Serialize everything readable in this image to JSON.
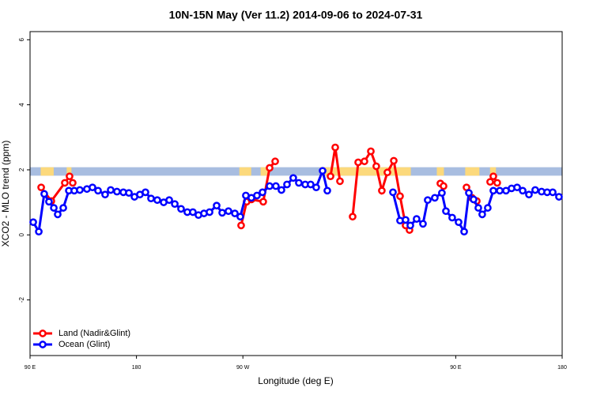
{
  "chart_data": {
    "type": "line",
    "title": "10N-15N May (Ver 11.2)   2014-09-06 to 2024-07-31",
    "xlabel": "Longitude (deg E)",
    "ylabel": "XCO2 - MLO trend (ppm)",
    "xlim": [
      90,
      540
    ],
    "ylim": [
      -3.71,
      6.25
    ],
    "xticks": [
      {
        "value": 90,
        "label": "90 E"
      },
      {
        "value": 180,
        "label": "180"
      },
      {
        "value": 270,
        "label": "90 W"
      },
      {
        "value": 450,
        "label": "90 E"
      },
      {
        "value": 540,
        "label": "180"
      }
    ],
    "yticks": [
      -2,
      0,
      2,
      4,
      6
    ],
    "band": {
      "ylim": [
        1.82,
        2.08
      ],
      "color": "#a8bde0"
    },
    "highlight": {
      "color": "#fcd97c",
      "ranges": [
        [
          99,
          110
        ],
        [
          121,
          125
        ],
        [
          267,
          277
        ],
        [
          285,
          292
        ],
        [
          335,
          412
        ],
        [
          434,
          440
        ],
        [
          458,
          470
        ],
        [
          479,
          484
        ]
      ]
    },
    "legend": "bottom-left",
    "series": [
      {
        "name": "Land (Nadir&Glint)",
        "color": "#ff0000",
        "x": [
          99.4,
          108,
          119.4,
          123.4,
          126.1,
          200,
          268.5,
          273.2,
          277.2,
          287.2,
          292.6,
          297.3,
          320,
          344.1,
          348.1,
          352.1,
          357,
          362.8,
          367.5,
          372.8,
          378.2,
          382.8,
          387.5,
          392.2,
          397.6,
          402.9,
          407.6,
          410.9,
          420,
          437.0,
          439.7,
          450,
          459.1,
          463.7,
          467.8,
          473,
          479.1,
          481.8,
          485.1
        ],
        "values": [
          1.46,
          1.04,
          1.6,
          1.8,
          1.6,
          null,
          0.29,
          1.02,
          1.09,
          1.02,
          2.06,
          2.26,
          null,
          1.8,
          2.69,
          1.65,
          null,
          0.56,
          2.23,
          2.26,
          2.57,
          2.11,
          1.36,
          1.92,
          2.28,
          1.19,
          0.29,
          0.15,
          null,
          1.58,
          1.5,
          null,
          1.46,
          1.14,
          1.04,
          null,
          1.63,
          1.8,
          1.6
        ]
      },
      {
        "name": "Ocean (Glint)",
        "color": "#0000ff",
        "x": [
          92.7,
          97.4,
          102.0,
          106.0,
          110.1,
          113.4,
          118.1,
          122.8,
          127.4,
          132.1,
          138.1,
          142.8,
          147.5,
          153.5,
          158.2,
          163.5,
          168.9,
          173.6,
          178.3,
          182.9,
          187.6,
          192.3,
          197.6,
          203.0,
          207.7,
          212.4,
          217.7,
          223.0,
          227.7,
          232.4,
          237.1,
          241.8,
          247.8,
          252.5,
          257.8,
          263.2,
          267.8,
          272.5,
          277.2,
          281.9,
          286.6,
          292.6,
          297.9,
          302.6,
          307.3,
          312.6,
          317.3,
          322.7,
          327.3,
          332.0,
          337.4,
          341.4,
          370,
          396.9,
          402.9,
          407.6,
          411.6,
          416.9,
          422.3,
          426.3,
          432.3,
          438.3,
          441.7,
          447.0,
          452.4,
          457.1,
          461.1,
          465.1,
          469.1,
          472.4,
          477.1,
          481.8,
          487.2,
          492.5,
          497.2,
          501.9,
          506.6,
          511.9,
          517.2,
          522.6,
          527.3,
          532.0,
          537.3
        ],
        "values": [
          0.39,
          0.1,
          1.26,
          1.02,
          0.83,
          0.63,
          0.83,
          1.36,
          1.36,
          1.38,
          1.41,
          1.46,
          1.36,
          1.24,
          1.38,
          1.33,
          1.31,
          1.29,
          1.17,
          1.24,
          1.31,
          1.12,
          1.07,
          1.0,
          1.07,
          0.95,
          0.8,
          0.7,
          0.7,
          0.61,
          0.66,
          0.7,
          0.9,
          0.68,
          0.73,
          0.66,
          0.56,
          1.21,
          1.14,
          1.21,
          1.31,
          1.5,
          1.5,
          1.38,
          1.55,
          1.75,
          1.6,
          1.55,
          1.55,
          1.46,
          1.97,
          1.36,
          null,
          1.31,
          0.44,
          0.46,
          0.29,
          0.49,
          0.34,
          1.07,
          1.14,
          1.29,
          0.73,
          0.53,
          0.39,
          0.1,
          1.29,
          1.09,
          0.83,
          0.63,
          0.83,
          1.36,
          1.36,
          1.36,
          1.43,
          1.46,
          1.36,
          1.24,
          1.38,
          1.33,
          1.31,
          1.31,
          1.17
        ]
      }
    ]
  }
}
